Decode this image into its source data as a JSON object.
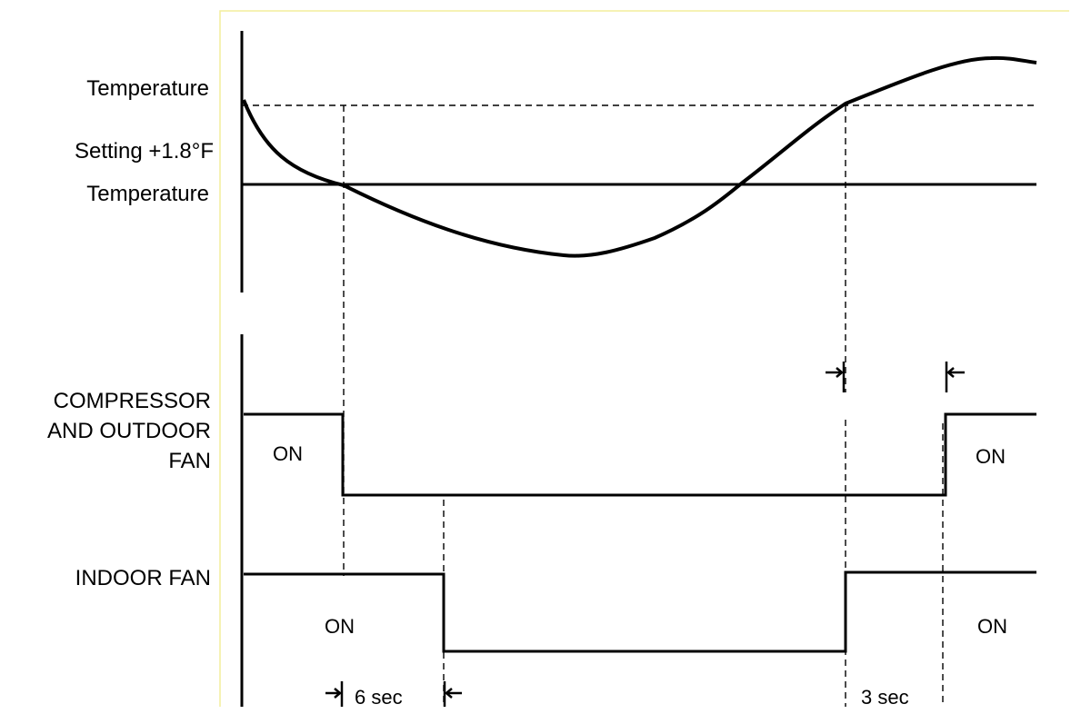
{
  "labels": {
    "temp_upper": "Temperature",
    "setting": "Setting +1.8°F",
    "temp_lower": "Temperature",
    "compressor_line1": "COMPRESSOR",
    "compressor_line2": "AND OUTDOOR",
    "compressor_line3": "FAN",
    "indoor_fan": "INDOOR FAN"
  },
  "states": {
    "comp_on_left": "ON",
    "comp_on_right": "ON",
    "fan_on_left": "ON",
    "fan_on_right": "ON"
  },
  "delays": {
    "indoor_fan_off_delay": "6 sec",
    "compressor_restart_delay": "3 sec"
  },
  "colors": {
    "line": "#000000",
    "frame": "#f3ee9c"
  }
}
